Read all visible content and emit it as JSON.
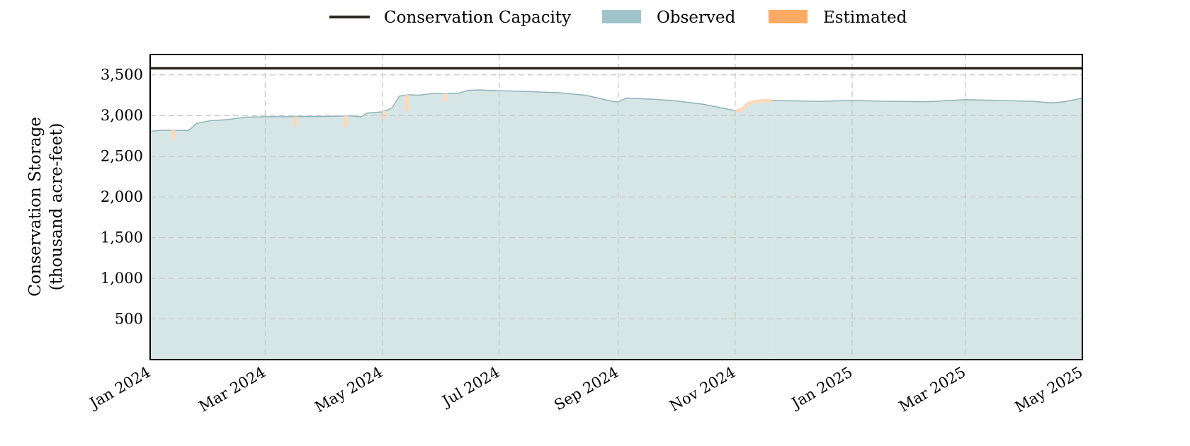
{
  "chart_data": {
    "type": "area",
    "title": "",
    "xlabel": "",
    "ylabel_lines": [
      "Conservation Storage",
      "(thousand acre-feet)"
    ],
    "x_range": [
      "2024-01-01",
      "2025-05-01"
    ],
    "ylim": [
      0,
      3750
    ],
    "grid": true,
    "legend_position": "top-center",
    "x_ticks": [
      {
        "date": "2024-01-01",
        "label": "Jan 2024"
      },
      {
        "date": "2024-03-01",
        "label": "Mar 2024"
      },
      {
        "date": "2024-05-01",
        "label": "May 2024"
      },
      {
        "date": "2024-07-01",
        "label": "Jul 2024"
      },
      {
        "date": "2024-09-01",
        "label": "Sep 2024"
      },
      {
        "date": "2024-11-01",
        "label": "Nov 2024"
      },
      {
        "date": "2025-01-01",
        "label": "Jan 2025"
      },
      {
        "date": "2025-03-01",
        "label": "Mar 2025"
      },
      {
        "date": "2025-05-01",
        "label": "May 2025"
      }
    ],
    "y_ticks": [
      {
        "value": 500,
        "label": "500"
      },
      {
        "value": 1000,
        "label": "1,000"
      },
      {
        "value": 1500,
        "label": "1,500"
      },
      {
        "value": 2000,
        "label": "2,000"
      },
      {
        "value": 2500,
        "label": "2,500"
      },
      {
        "value": 3000,
        "label": "3,000"
      },
      {
        "value": 3500,
        "label": "3,500"
      }
    ],
    "conservation_capacity": {
      "name": "Conservation Capacity",
      "value": 3580,
      "color": "#2b2a1c"
    },
    "observed": {
      "name": "Observed",
      "color": "#9fc4c9",
      "fill": "#d6e6e7",
      "line": "#8fb3b8",
      "points": [
        [
          "2024-01-01",
          2805
        ],
        [
          "2024-01-07",
          2820
        ],
        [
          "2024-01-15",
          2818
        ],
        [
          "2024-01-21",
          2815
        ],
        [
          "2024-01-25",
          2900
        ],
        [
          "2024-02-01",
          2935
        ],
        [
          "2024-02-10",
          2950
        ],
        [
          "2024-02-20",
          2980
        ],
        [
          "2024-03-01",
          2985
        ],
        [
          "2024-03-15",
          2985
        ],
        [
          "2024-04-01",
          2990
        ],
        [
          "2024-04-15",
          2995
        ],
        [
          "2024-04-20",
          2985
        ],
        [
          "2024-04-23",
          3030
        ],
        [
          "2024-05-01",
          3045
        ],
        [
          "2024-05-06",
          3090
        ],
        [
          "2024-05-10",
          3240
        ],
        [
          "2024-05-15",
          3255
        ],
        [
          "2024-05-20",
          3250
        ],
        [
          "2024-05-27",
          3270
        ],
        [
          "2024-06-10",
          3275
        ],
        [
          "2024-06-15",
          3310
        ],
        [
          "2024-06-20",
          3315
        ],
        [
          "2024-07-01",
          3305
        ],
        [
          "2024-07-15",
          3295
        ],
        [
          "2024-08-01",
          3280
        ],
        [
          "2024-08-15",
          3250
        ],
        [
          "2024-08-29",
          3175
        ],
        [
          "2024-09-01",
          3165
        ],
        [
          "2024-09-05",
          3215
        ],
        [
          "2024-09-20",
          3200
        ],
        [
          "2024-10-01",
          3180
        ],
        [
          "2024-10-15",
          3140
        ],
        [
          "2024-11-01",
          3060
        ]
      ]
    },
    "estimated": {
      "name": "Estimated",
      "color": "#fdab64",
      "fill": "#fcd9bb",
      "points": [
        [
          "2024-11-01",
          3050
        ],
        [
          "2024-11-05",
          3080
        ],
        [
          "2024-11-08",
          3150
        ],
        [
          "2024-11-12",
          3175
        ],
        [
          "2024-11-20",
          3185
        ]
      ],
      "dips": [
        [
          "2024-01-13",
          2700
        ],
        [
          "2024-03-17",
          2870
        ],
        [
          "2024-04-12",
          2860
        ],
        [
          "2024-05-02",
          2960
        ],
        [
          "2024-05-14",
          3060
        ],
        [
          "2024-06-03",
          3180
        ]
      ]
    },
    "observed_late": {
      "points": [
        [
          "2024-11-20",
          3185
        ],
        [
          "2024-12-15",
          3175
        ],
        [
          "2025-01-01",
          3185
        ],
        [
          "2025-01-20",
          3175
        ],
        [
          "2025-02-10",
          3170
        ],
        [
          "2025-03-01",
          3195
        ],
        [
          "2025-03-20",
          3185
        ],
        [
          "2025-04-05",
          3175
        ],
        [
          "2025-04-15",
          3155
        ],
        [
          "2025-04-22",
          3170
        ],
        [
          "2025-05-01",
          3215
        ]
      ]
    }
  }
}
